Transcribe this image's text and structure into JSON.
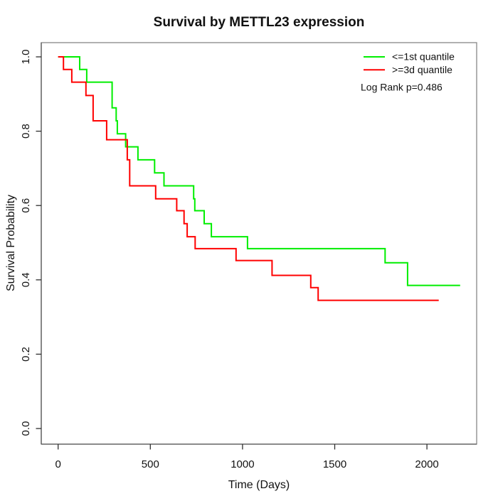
{
  "chart_data": {
    "type": "line",
    "subtype": "kaplan-meier-step",
    "title": "Survival by METTL23 expression",
    "xlabel": "Time (Days)",
    "ylabel": "Survival Probability",
    "xlim": [
      0,
      2200
    ],
    "ylim": [
      0.0,
      1.0
    ],
    "grid": false,
    "x_ticks": [
      0,
      500,
      1000,
      1500,
      2000
    ],
    "x_tick_labels": [
      "0",
      "500",
      "1000",
      "1500",
      "2000"
    ],
    "y_tick_values": [
      0.0,
      0.2,
      0.4,
      0.6,
      0.8,
      1.0
    ],
    "y_tick_labels": [
      "0.0",
      "0.2",
      "0.4",
      "0.6",
      "0.8",
      "1.0"
    ],
    "legend": {
      "position": "top-right",
      "items": [
        {
          "id": "q1",
          "label": "<=1st quantile",
          "color": "#00ee00"
        },
        {
          "id": "q3",
          "label": ">=3d quantile",
          "color": "#ff0000"
        }
      ],
      "note": "Log Rank p=0.486"
    },
    "log_rank_p": 0.486,
    "series": [
      {
        "id": "q1",
        "name": "<=1st quantile",
        "color": "#00ee00",
        "start": [
          0,
          1.0
        ],
        "points": [
          [
            117,
            0.966
          ],
          [
            155,
            0.932
          ],
          [
            293,
            0.863
          ],
          [
            315,
            0.828
          ],
          [
            321,
            0.793
          ],
          [
            366,
            0.758
          ],
          [
            433,
            0.723
          ],
          [
            523,
            0.688
          ],
          [
            574,
            0.653
          ],
          [
            735,
            0.618
          ],
          [
            741,
            0.586
          ],
          [
            792,
            0.551
          ],
          [
            831,
            0.516
          ],
          [
            1027,
            0.484
          ],
          [
            1773,
            0.446
          ],
          [
            1895,
            0.385
          ]
        ],
        "end_time": 2180
      },
      {
        "id": "q3",
        "name": ">=3d quantile",
        "color": "#ff0000",
        "start": [
          0,
          1.0
        ],
        "points": [
          [
            29,
            0.966
          ],
          [
            74,
            0.932
          ],
          [
            151,
            0.896
          ],
          [
            190,
            0.828
          ],
          [
            263,
            0.777
          ],
          [
            375,
            0.723
          ],
          [
            388,
            0.653
          ],
          [
            529,
            0.618
          ],
          [
            643,
            0.586
          ],
          [
            683,
            0.551
          ],
          [
            700,
            0.516
          ],
          [
            743,
            0.484
          ],
          [
            965,
            0.452
          ],
          [
            1160,
            0.412
          ],
          [
            1370,
            0.379
          ],
          [
            1410,
            0.345
          ]
        ],
        "end_time": 2064
      }
    ]
  }
}
